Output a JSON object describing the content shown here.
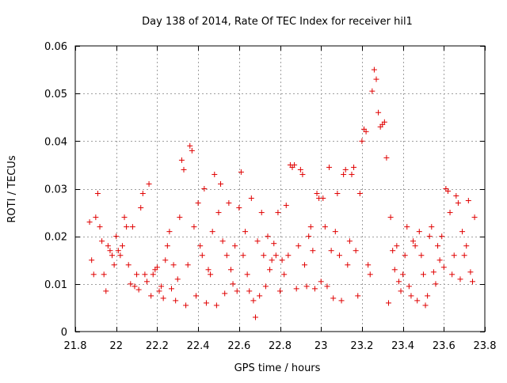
{
  "chart_data": {
    "type": "scatter",
    "title": "Day 138 of 2014, Rate Of TEC Index for receiver hil1",
    "xlabel": "GPS time / hours",
    "ylabel": "ROTI / TECUs",
    "xlim": [
      21.8,
      23.8
    ],
    "ylim": [
      0,
      0.06
    ],
    "xticks": [
      21.8,
      22,
      22.2,
      22.4,
      22.6,
      22.8,
      23,
      23.2,
      23.4,
      23.6,
      23.8
    ],
    "xtick_labels": [
      "21.8",
      "22",
      "22.2",
      "22.4",
      "22.6",
      "22.8",
      "23",
      "23.2",
      "23.4",
      "23.6",
      "23.8"
    ],
    "yticks": [
      0,
      0.01,
      0.02,
      0.03,
      0.04,
      0.05,
      0.06
    ],
    "ytick_labels": [
      "0",
      "0.01",
      "0.02",
      "0.03",
      "0.04",
      "0.05",
      "0.06"
    ],
    "grid": true,
    "marker": "+",
    "marker_color": "#e00000",
    "series": [
      {
        "name": "ROTI",
        "points": [
          [
            21.87,
            0.023
          ],
          [
            21.88,
            0.015
          ],
          [
            21.89,
            0.012
          ],
          [
            21.9,
            0.024
          ],
          [
            21.91,
            0.029
          ],
          [
            21.92,
            0.022
          ],
          [
            21.93,
            0.019
          ],
          [
            21.94,
            0.012
          ],
          [
            21.95,
            0.0085
          ],
          [
            21.96,
            0.018
          ],
          [
            21.97,
            0.017
          ],
          [
            21.98,
            0.016
          ],
          [
            21.99,
            0.014
          ],
          [
            22.0,
            0.02
          ],
          [
            22.01,
            0.017
          ],
          [
            22.02,
            0.016
          ],
          [
            22.03,
            0.018
          ],
          [
            22.04,
            0.024
          ],
          [
            22.05,
            0.022
          ],
          [
            22.06,
            0.014
          ],
          [
            22.07,
            0.01
          ],
          [
            22.08,
            0.022
          ],
          [
            22.09,
            0.0095
          ],
          [
            22.1,
            0.012
          ],
          [
            22.11,
            0.0088
          ],
          [
            22.12,
            0.026
          ],
          [
            22.13,
            0.029
          ],
          [
            22.14,
            0.012
          ],
          [
            22.15,
            0.0105
          ],
          [
            22.16,
            0.031
          ],
          [
            22.17,
            0.0075
          ],
          [
            22.18,
            0.012
          ],
          [
            22.19,
            0.013
          ],
          [
            22.2,
            0.0135
          ],
          [
            22.21,
            0.0085
          ],
          [
            22.22,
            0.0095
          ],
          [
            22.23,
            0.007
          ],
          [
            22.24,
            0.015
          ],
          [
            22.25,
            0.018
          ],
          [
            22.26,
            0.021
          ],
          [
            22.27,
            0.009
          ],
          [
            22.28,
            0.014
          ],
          [
            22.29,
            0.0065
          ],
          [
            22.3,
            0.011
          ],
          [
            22.31,
            0.024
          ],
          [
            22.32,
            0.036
          ],
          [
            22.33,
            0.034
          ],
          [
            22.34,
            0.0055
          ],
          [
            22.35,
            0.014
          ],
          [
            22.36,
            0.039
          ],
          [
            22.37,
            0.038
          ],
          [
            22.38,
            0.022
          ],
          [
            22.39,
            0.0075
          ],
          [
            22.4,
            0.027
          ],
          [
            22.41,
            0.018
          ],
          [
            22.42,
            0.016
          ],
          [
            22.43,
            0.03
          ],
          [
            22.44,
            0.006
          ],
          [
            22.45,
            0.013
          ],
          [
            22.46,
            0.012
          ],
          [
            22.47,
            0.021
          ],
          [
            22.48,
            0.033
          ],
          [
            22.49,
            0.0055
          ],
          [
            22.5,
            0.025
          ],
          [
            22.51,
            0.031
          ],
          [
            22.52,
            0.019
          ],
          [
            22.53,
            0.008
          ],
          [
            22.54,
            0.016
          ],
          [
            22.55,
            0.027
          ],
          [
            22.56,
            0.013
          ],
          [
            22.57,
            0.01
          ],
          [
            22.58,
            0.018
          ],
          [
            22.59,
            0.0085
          ],
          [
            22.6,
            0.026
          ],
          [
            22.61,
            0.0335
          ],
          [
            22.62,
            0.016
          ],
          [
            22.63,
            0.021
          ],
          [
            22.64,
            0.012
          ],
          [
            22.65,
            0.0085
          ],
          [
            22.66,
            0.028
          ],
          [
            22.67,
            0.0065
          ],
          [
            22.68,
            0.003
          ],
          [
            22.69,
            0.019
          ],
          [
            22.7,
            0.0075
          ],
          [
            22.71,
            0.025
          ],
          [
            22.72,
            0.016
          ],
          [
            22.73,
            0.0095
          ],
          [
            22.74,
            0.02
          ],
          [
            22.75,
            0.013
          ],
          [
            22.76,
            0.015
          ],
          [
            22.77,
            0.0185
          ],
          [
            22.78,
            0.016
          ],
          [
            22.79,
            0.025
          ],
          [
            22.8,
            0.0085
          ],
          [
            22.81,
            0.015
          ],
          [
            22.82,
            0.012
          ],
          [
            22.83,
            0.0265
          ],
          [
            22.84,
            0.016
          ],
          [
            22.85,
            0.035
          ],
          [
            22.86,
            0.0345
          ],
          [
            22.87,
            0.035
          ],
          [
            22.88,
            0.009
          ],
          [
            22.89,
            0.018
          ],
          [
            22.9,
            0.034
          ],
          [
            22.91,
            0.033
          ],
          [
            22.92,
            0.014
          ],
          [
            22.93,
            0.0095
          ],
          [
            22.94,
            0.02
          ],
          [
            22.95,
            0.022
          ],
          [
            22.96,
            0.017
          ],
          [
            22.97,
            0.009
          ],
          [
            22.98,
            0.029
          ],
          [
            22.99,
            0.028
          ],
          [
            23.0,
            0.0105
          ],
          [
            23.01,
            0.028
          ],
          [
            23.02,
            0.022
          ],
          [
            23.03,
            0.0095
          ],
          [
            23.04,
            0.0345
          ],
          [
            23.05,
            0.017
          ],
          [
            23.06,
            0.007
          ],
          [
            23.07,
            0.021
          ],
          [
            23.08,
            0.029
          ],
          [
            23.09,
            0.016
          ],
          [
            23.1,
            0.0065
          ],
          [
            23.11,
            0.033
          ],
          [
            23.12,
            0.034
          ],
          [
            23.13,
            0.014
          ],
          [
            23.14,
            0.019
          ],
          [
            23.15,
            0.033
          ],
          [
            23.16,
            0.0345
          ],
          [
            23.17,
            0.017
          ],
          [
            23.18,
            0.0075
          ],
          [
            23.19,
            0.029
          ],
          [
            23.2,
            0.04
          ],
          [
            23.21,
            0.0425
          ],
          [
            23.22,
            0.042
          ],
          [
            23.23,
            0.014
          ],
          [
            23.24,
            0.012
          ],
          [
            23.25,
            0.0505
          ],
          [
            23.26,
            0.055
          ],
          [
            23.27,
            0.053
          ],
          [
            23.28,
            0.046
          ],
          [
            23.29,
            0.043
          ],
          [
            23.3,
            0.0435
          ],
          [
            23.31,
            0.044
          ],
          [
            23.32,
            0.0365
          ],
          [
            23.33,
            0.006
          ],
          [
            23.34,
            0.024
          ],
          [
            23.35,
            0.017
          ],
          [
            23.36,
            0.013
          ],
          [
            23.37,
            0.018
          ],
          [
            23.38,
            0.0105
          ],
          [
            23.39,
            0.0085
          ],
          [
            23.4,
            0.012
          ],
          [
            23.41,
            0.016
          ],
          [
            23.42,
            0.022
          ],
          [
            23.43,
            0.0095
          ],
          [
            23.44,
            0.0075
          ],
          [
            23.45,
            0.019
          ],
          [
            23.46,
            0.018
          ],
          [
            23.47,
            0.0065
          ],
          [
            23.48,
            0.021
          ],
          [
            23.49,
            0.016
          ],
          [
            23.5,
            0.012
          ],
          [
            23.51,
            0.0055
          ],
          [
            23.52,
            0.0075
          ],
          [
            23.53,
            0.02
          ],
          [
            23.54,
            0.022
          ],
          [
            23.55,
            0.0125
          ],
          [
            23.56,
            0.01
          ],
          [
            23.57,
            0.018
          ],
          [
            23.58,
            0.015
          ],
          [
            23.59,
            0.02
          ],
          [
            23.6,
            0.0135
          ],
          [
            23.61,
            0.03
          ],
          [
            23.62,
            0.0295
          ],
          [
            23.63,
            0.025
          ],
          [
            23.64,
            0.012
          ],
          [
            23.65,
            0.016
          ],
          [
            23.66,
            0.0285
          ],
          [
            23.67,
            0.027
          ],
          [
            23.68,
            0.011
          ],
          [
            23.69,
            0.021
          ],
          [
            23.7,
            0.016
          ],
          [
            23.71,
            0.018
          ],
          [
            23.72,
            0.0275
          ],
          [
            23.73,
            0.0125
          ],
          [
            23.74,
            0.0105
          ],
          [
            23.75,
            0.024
          ]
        ]
      }
    ]
  }
}
